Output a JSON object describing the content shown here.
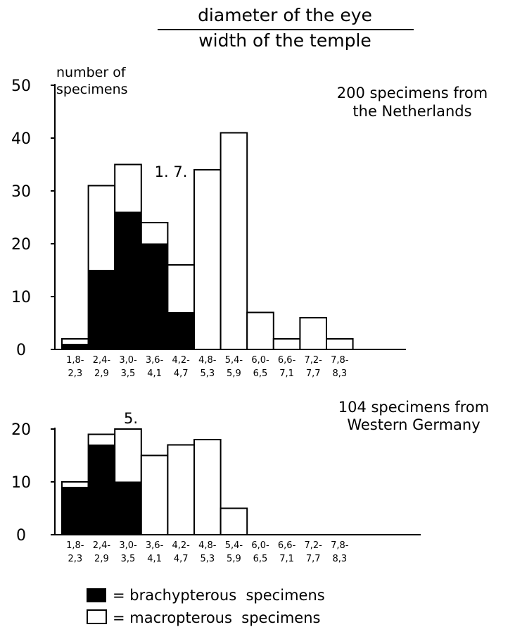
{
  "title": {
    "numerator": "diameter of the eye",
    "denominator": "width of the temple"
  },
  "legend": {
    "brachy_label": "= brachypterous  specimens",
    "macro_label": "= macropterous  specimens"
  },
  "colors": {
    "brachypterous": "#000000",
    "macropterous": "#ffffff",
    "ink": "#000000"
  },
  "chart_data": [
    {
      "type": "bar",
      "stacked": true,
      "title": "200 specimens from the Netherlands",
      "title_lines": [
        "200 specimens from",
        "the Netherlands"
      ],
      "ylabel_lines": [
        "number of",
        "specimens"
      ],
      "annotation": "1. 7.",
      "ylim": [
        0,
        50
      ],
      "yticks": [
        "0",
        "10",
        "20",
        "30",
        "40",
        "50"
      ],
      "categories": [
        "1,8-2,3",
        "2,4-2,9",
        "3,0-3,5",
        "3,6-4,1",
        "4,2-4,7",
        "4,8-5,3",
        "5,4-5,9",
        "6,0-6,5",
        "6,6-7,1",
        "7,2-7,7",
        "7,8-8,3"
      ],
      "category_lines": [
        [
          "1,8-",
          "2,3"
        ],
        [
          "2,4-",
          "2,9"
        ],
        [
          "3,0-",
          "3,5"
        ],
        [
          "3,6-",
          "4,1"
        ],
        [
          "4,2-",
          "4,7"
        ],
        [
          "4,8-",
          "5,3"
        ],
        [
          "5,4-",
          "5,9"
        ],
        [
          "6,0-",
          "6,5"
        ],
        [
          "6,6-",
          "7,1"
        ],
        [
          "7,2-",
          "7,7"
        ],
        [
          "7,8-",
          "8,3"
        ]
      ],
      "series": [
        {
          "name": "brachypterous specimens",
          "values": [
            1,
            15,
            26,
            20,
            7,
            0,
            0,
            0,
            0,
            0,
            0
          ]
        },
        {
          "name": "macropterous specimens",
          "values": [
            1,
            16,
            9,
            4,
            9,
            34,
            41,
            7,
            2,
            6,
            2
          ]
        }
      ]
    },
    {
      "type": "bar",
      "stacked": true,
      "title": "104 specimens from Western Germany",
      "title_lines": [
        "104 specimens from",
        "Western Germany"
      ],
      "annotation": "5.",
      "ylim": [
        0,
        20
      ],
      "yticks": [
        "0",
        "10",
        "20"
      ],
      "categories": [
        "1,8-2,3",
        "2,4-2,9",
        "3,0-3,5",
        "3,6-4,1",
        "4,2-4,7",
        "4,8-5,3",
        "5,4-5,9",
        "6,0-6,5",
        "6,6-7,1",
        "7,2-7,7",
        "7,8-8,3"
      ],
      "category_lines": [
        [
          "1,8-",
          "2,3"
        ],
        [
          "2,4-",
          "2,9"
        ],
        [
          "3,0-",
          "3,5"
        ],
        [
          "3,6-",
          "4,1"
        ],
        [
          "4,2-",
          "4,7"
        ],
        [
          "4,8-",
          "5,3"
        ],
        [
          "5,4-",
          "5,9"
        ],
        [
          "6,0-",
          "6,5"
        ],
        [
          "6,6-",
          "7,1"
        ],
        [
          "7,2-",
          "7,7"
        ],
        [
          "7,8-",
          "8,3"
        ]
      ],
      "series": [
        {
          "name": "brachypterous specimens",
          "values": [
            9,
            17,
            10,
            0,
            0,
            0,
            0,
            0,
            0,
            0,
            0
          ]
        },
        {
          "name": "macropterous specimens",
          "values": [
            1,
            2,
            10,
            15,
            17,
            18,
            5,
            0,
            0,
            0,
            0
          ]
        }
      ]
    }
  ]
}
